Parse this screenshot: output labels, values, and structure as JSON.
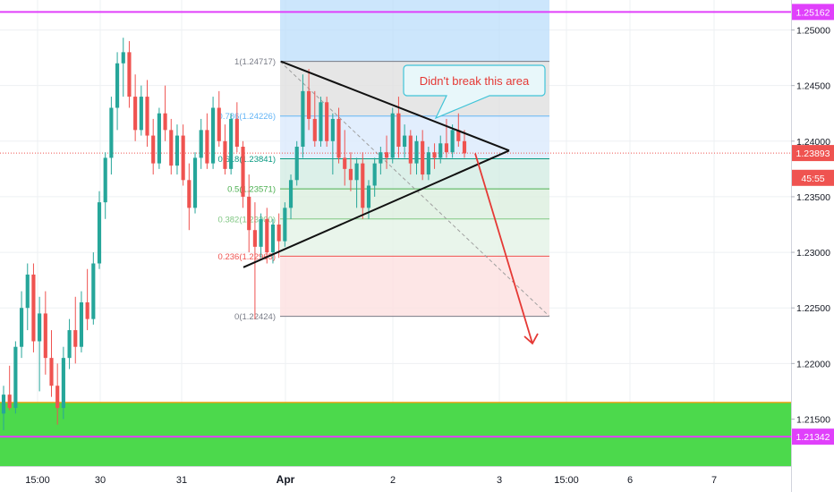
{
  "chart_data": {
    "type": "candlestick",
    "instrument_note": "",
    "y_axis": {
      "ticks": [
        "1.25000",
        "1.24500",
        "1.24000",
        "1.23500",
        "1.23000",
        "1.22500",
        "1.22000",
        "1.21500"
      ],
      "tick_values": [
        1.25,
        1.245,
        1.24,
        1.235,
        1.23,
        1.225,
        1.22,
        1.215
      ],
      "ylim": [
        1.2101,
        1.2528
      ]
    },
    "x_axis": {
      "ticks": [
        "15:00",
        "30",
        "31",
        "Apr",
        "2",
        "3",
        "15:00",
        "6",
        "7"
      ],
      "bold_ticks": [
        "Apr"
      ]
    },
    "price_labels": [
      {
        "text": "1.25162",
        "value": 1.25162,
        "color": "#e040fb"
      },
      {
        "text": "1.23893",
        "value": 1.23893,
        "color": "#ef5350"
      },
      {
        "text": "45:55",
        "value": 1.2367,
        "color": "#ef5350"
      },
      {
        "text": "1.21342",
        "value": 1.21342,
        "color": "#e040fb"
      }
    ],
    "horizontal_lines": [
      {
        "value": 1.25162,
        "color": "#e040fb"
      },
      {
        "value": 1.21342,
        "color": "#e040fb"
      }
    ],
    "support_zone": {
      "top": 1.2165,
      "bottom": 1.2101,
      "color": "#4cd94c",
      "border": "#ff9800"
    },
    "current_price": 1.23893,
    "fibonacci": {
      "levels": [
        {
          "ratio": "1",
          "value": 1.24717,
          "label": "1(1.24717)",
          "color": "#787b86"
        },
        {
          "ratio": "0.786",
          "value": 1.24226,
          "label": "0.786(1.24226)",
          "color": "#64b5f6"
        },
        {
          "ratio": "0.618",
          "value": 1.23841,
          "label": "0.618(1.23841)",
          "color": "#089981"
        },
        {
          "ratio": "0.5",
          "value": 1.23571,
          "label": "0.5(1.23571)",
          "color": "#4caf50"
        },
        {
          "ratio": "0.382",
          "value": 1.233,
          "label": "0.382(1.23300)",
          "color": "#81c784"
        },
        {
          "ratio": "0.236",
          "value": 1.22965,
          "label": "0.236(1.22965)",
          "color": "#ef5350"
        },
        {
          "ratio": "0",
          "value": 1.22424,
          "label": "0(1.22424)",
          "color": "#787b86"
        }
      ]
    },
    "annotation": {
      "text": "Didn't break this area"
    },
    "candles": [
      {
        "o": 1.2155,
        "h": 1.218,
        "l": 1.214,
        "c": 1.2172
      },
      {
        "o": 1.2172,
        "h": 1.2198,
        "l": 1.2158,
        "c": 1.216
      },
      {
        "o": 1.216,
        "h": 1.222,
        "l": 1.2155,
        "c": 1.2215
      },
      {
        "o": 1.2215,
        "h": 1.2265,
        "l": 1.2205,
        "c": 1.225
      },
      {
        "o": 1.225,
        "h": 1.229,
        "l": 1.223,
        "c": 1.228
      },
      {
        "o": 1.228,
        "h": 1.229,
        "l": 1.221,
        "c": 1.222
      },
      {
        "o": 1.222,
        "h": 1.226,
        "l": 1.2175,
        "c": 1.2245
      },
      {
        "o": 1.2245,
        "h": 1.2265,
        "l": 1.219,
        "c": 1.2205
      },
      {
        "o": 1.2205,
        "h": 1.223,
        "l": 1.217,
        "c": 1.218
      },
      {
        "o": 1.218,
        "h": 1.22,
        "l": 1.2145,
        "c": 1.216
      },
      {
        "o": 1.216,
        "h": 1.2215,
        "l": 1.215,
        "c": 1.2205
      },
      {
        "o": 1.2205,
        "h": 1.224,
        "l": 1.2195,
        "c": 1.223
      },
      {
        "o": 1.223,
        "h": 1.226,
        "l": 1.22,
        "c": 1.2215
      },
      {
        "o": 1.2215,
        "h": 1.2265,
        "l": 1.221,
        "c": 1.2255
      },
      {
        "o": 1.2255,
        "h": 1.2285,
        "l": 1.223,
        "c": 1.224
      },
      {
        "o": 1.224,
        "h": 1.23,
        "l": 1.2235,
        "c": 1.229
      },
      {
        "o": 1.229,
        "h": 1.2355,
        "l": 1.2285,
        "c": 1.2345
      },
      {
        "o": 1.2345,
        "h": 1.239,
        "l": 1.233,
        "c": 1.2385
      },
      {
        "o": 1.2385,
        "h": 1.244,
        "l": 1.237,
        "c": 1.243
      },
      {
        "o": 1.243,
        "h": 1.248,
        "l": 1.241,
        "c": 1.247
      },
      {
        "o": 1.247,
        "h": 1.2493,
        "l": 1.244,
        "c": 1.248
      },
      {
        "o": 1.248,
        "h": 1.249,
        "l": 1.243,
        "c": 1.244
      },
      {
        "o": 1.244,
        "h": 1.246,
        "l": 1.24,
        "c": 1.241
      },
      {
        "o": 1.241,
        "h": 1.245,
        "l": 1.2405,
        "c": 1.244
      },
      {
        "o": 1.244,
        "h": 1.2455,
        "l": 1.2395,
        "c": 1.2405
      },
      {
        "o": 1.2405,
        "h": 1.242,
        "l": 1.237,
        "c": 1.238
      },
      {
        "o": 1.238,
        "h": 1.243,
        "l": 1.2375,
        "c": 1.2425
      },
      {
        "o": 1.2425,
        "h": 1.245,
        "l": 1.24,
        "c": 1.241
      },
      {
        "o": 1.241,
        "h": 1.242,
        "l": 1.237,
        "c": 1.2378
      },
      {
        "o": 1.2378,
        "h": 1.2415,
        "l": 1.237,
        "c": 1.2405
      },
      {
        "o": 1.2405,
        "h": 1.2415,
        "l": 1.236,
        "c": 1.2365
      },
      {
        "o": 1.2365,
        "h": 1.238,
        "l": 1.232,
        "c": 1.234
      },
      {
        "o": 1.234,
        "h": 1.239,
        "l": 1.2335,
        "c": 1.2385
      },
      {
        "o": 1.2385,
        "h": 1.242,
        "l": 1.2375,
        "c": 1.241
      },
      {
        "o": 1.241,
        "h": 1.2425,
        "l": 1.2375,
        "c": 1.238
      },
      {
        "o": 1.238,
        "h": 1.244,
        "l": 1.2375,
        "c": 1.243
      },
      {
        "o": 1.243,
        "h": 1.2445,
        "l": 1.2395,
        "c": 1.24
      },
      {
        "o": 1.24,
        "h": 1.2415,
        "l": 1.237,
        "c": 1.2375
      },
      {
        "o": 1.2375,
        "h": 1.2425,
        "l": 1.237,
        "c": 1.242
      },
      {
        "o": 1.242,
        "h": 1.2435,
        "l": 1.239,
        "c": 1.2395
      },
      {
        "o": 1.2395,
        "h": 1.24,
        "l": 1.234,
        "c": 1.235
      },
      {
        "o": 1.235,
        "h": 1.237,
        "l": 1.23,
        "c": 1.232
      },
      {
        "o": 1.232,
        "h": 1.2345,
        "l": 1.224,
        "c": 1.2305
      },
      {
        "o": 1.2305,
        "h": 1.2335,
        "l": 1.2295,
        "c": 1.233
      },
      {
        "o": 1.233,
        "h": 1.234,
        "l": 1.229,
        "c": 1.23
      },
      {
        "o": 1.23,
        "h": 1.233,
        "l": 1.229,
        "c": 1.2325
      },
      {
        "o": 1.2325,
        "h": 1.2335,
        "l": 1.2295,
        "c": 1.231
      },
      {
        "o": 1.231,
        "h": 1.2345,
        "l": 1.2305,
        "c": 1.234
      },
      {
        "o": 1.234,
        "h": 1.237,
        "l": 1.233,
        "c": 1.2365
      },
      {
        "o": 1.2365,
        "h": 1.24,
        "l": 1.236,
        "c": 1.2395
      },
      {
        "o": 1.2395,
        "h": 1.246,
        "l": 1.2385,
        "c": 1.2445
      },
      {
        "o": 1.2445,
        "h": 1.2465,
        "l": 1.241,
        "c": 1.242
      },
      {
        "o": 1.242,
        "h": 1.2445,
        "l": 1.2395,
        "c": 1.24
      },
      {
        "o": 1.24,
        "h": 1.244,
        "l": 1.2395,
        "c": 1.2435
      },
      {
        "o": 1.2435,
        "h": 1.244,
        "l": 1.2395,
        "c": 1.24
      },
      {
        "o": 1.24,
        "h": 1.2425,
        "l": 1.237,
        "c": 1.242
      },
      {
        "o": 1.242,
        "h": 1.243,
        "l": 1.238,
        "c": 1.2385
      },
      {
        "o": 1.2385,
        "h": 1.241,
        "l": 1.236,
        "c": 1.2375
      },
      {
        "o": 1.2375,
        "h": 1.239,
        "l": 1.2355,
        "c": 1.2365
      },
      {
        "o": 1.2365,
        "h": 1.2385,
        "l": 1.234,
        "c": 1.238
      },
      {
        "o": 1.238,
        "h": 1.239,
        "l": 1.233,
        "c": 1.234
      },
      {
        "o": 1.234,
        "h": 1.2365,
        "l": 1.233,
        "c": 1.236
      },
      {
        "o": 1.236,
        "h": 1.2385,
        "l": 1.235,
        "c": 1.238
      },
      {
        "o": 1.238,
        "h": 1.2395,
        "l": 1.237,
        "c": 1.239
      },
      {
        "o": 1.239,
        "h": 1.2405,
        "l": 1.2375,
        "c": 1.2385
      },
      {
        "o": 1.2385,
        "h": 1.243,
        "l": 1.238,
        "c": 1.2425
      },
      {
        "o": 1.2425,
        "h": 1.244,
        "l": 1.2385,
        "c": 1.2395
      },
      {
        "o": 1.2395,
        "h": 1.2415,
        "l": 1.2385,
        "c": 1.2405
      },
      {
        "o": 1.2405,
        "h": 1.241,
        "l": 1.237,
        "c": 1.238
      },
      {
        "o": 1.238,
        "h": 1.2405,
        "l": 1.237,
        "c": 1.24
      },
      {
        "o": 1.24,
        "h": 1.241,
        "l": 1.2365,
        "c": 1.237
      },
      {
        "o": 1.237,
        "h": 1.2395,
        "l": 1.2365,
        "c": 1.239
      },
      {
        "o": 1.239,
        "h": 1.2398,
        "l": 1.2375,
        "c": 1.2385
      },
      {
        "o": 1.2385,
        "h": 1.2405,
        "l": 1.238,
        "c": 1.2398
      },
      {
        "o": 1.2398,
        "h": 1.242,
        "l": 1.2385,
        "c": 1.239
      },
      {
        "o": 1.239,
        "h": 1.2415,
        "l": 1.2385,
        "c": 1.241
      },
      {
        "o": 1.241,
        "h": 1.2425,
        "l": 1.2395,
        "c": 1.24
      },
      {
        "o": 1.24,
        "h": 1.241,
        "l": 1.2385,
        "c": 1.2389
      }
    ]
  }
}
